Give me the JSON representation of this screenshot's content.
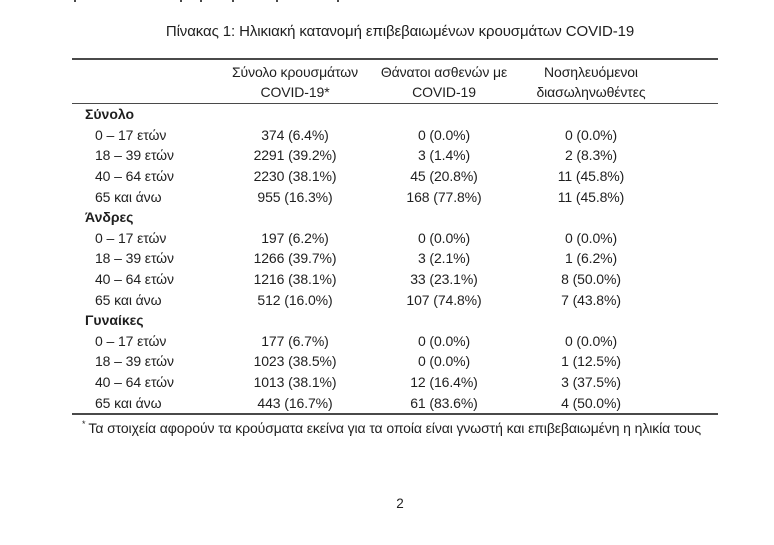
{
  "page": {
    "title": "Πίνακας 1: Ηλικιακή κατανομή επιβεβαιωμένων κρουσμάτων COVID-19",
    "page_number": "2",
    "footnote_marker": "*",
    "footnote_text": "Τα στοιχεία αφορούν τα κρούσματα εκείνα για τα οποία είναι γνωστή και επιβεβαιωμένη η ηλικία τους"
  },
  "table": {
    "columns": [
      {
        "line1": "Σύνολο κρουσμάτων",
        "line2": "COVID-19*"
      },
      {
        "line1": "Θάνατοι ασθενών με",
        "line2": "COVID-19"
      },
      {
        "line1": "Νοσηλευόμενοι",
        "line2": "διασωληνωθέντες"
      }
    ],
    "sections": [
      {
        "label": "Σύνολο",
        "rows": [
          {
            "label": "0 – 17 ετών",
            "cases": "374 (6.4%)",
            "deaths": "0 (0.0%)",
            "intubated": "0 (0.0%)"
          },
          {
            "label": "18 – 39 ετών",
            "cases": "2291 (39.2%)",
            "deaths": "3 (1.4%)",
            "intubated": "2 (8.3%)"
          },
          {
            "label": "40 – 64 ετών",
            "cases": "2230 (38.1%)",
            "deaths": "45 (20.8%)",
            "intubated": "11 (45.8%)"
          },
          {
            "label": "65 και άνω",
            "cases": "955 (16.3%)",
            "deaths": "168 (77.8%)",
            "intubated": "11 (45.8%)"
          }
        ]
      },
      {
        "label": "Άνδρες",
        "rows": [
          {
            "label": "0 – 17 ετών",
            "cases": "197 (6.2%)",
            "deaths": "0 (0.0%)",
            "intubated": "0 (0.0%)"
          },
          {
            "label": "18 – 39 ετών",
            "cases": "1266 (39.7%)",
            "deaths": "3 (2.1%)",
            "intubated": "1 (6.2%)"
          },
          {
            "label": "40 – 64 ετών",
            "cases": "1216 (38.1%)",
            "deaths": "33 (23.1%)",
            "intubated": "8 (50.0%)"
          },
          {
            "label": "65 και άνω",
            "cases": "512 (16.0%)",
            "deaths": "107 (74.8%)",
            "intubated": "7 (43.8%)"
          }
        ]
      },
      {
        "label": "Γυναίκες",
        "rows": [
          {
            "label": "0 – 17 ετών",
            "cases": "177 (6.7%)",
            "deaths": "0 (0.0%)",
            "intubated": "0 (0.0%)"
          },
          {
            "label": "18 – 39 ετών",
            "cases": "1023 (38.5%)",
            "deaths": "0 (0.0%)",
            "intubated": "1 (12.5%)"
          },
          {
            "label": "40 – 64 ετών",
            "cases": "1013 (38.1%)",
            "deaths": "12 (16.4%)",
            "intubated": "3 (37.5%)"
          },
          {
            "label": "65 και άνω",
            "cases": "443 (16.7%)",
            "deaths": "61 (83.6%)",
            "intubated": "4 (50.0%)"
          }
        ]
      }
    ]
  },
  "colors": {
    "text": "#1f1f1f",
    "rule": "#4a4a4a",
    "background": "#ffffff"
  }
}
